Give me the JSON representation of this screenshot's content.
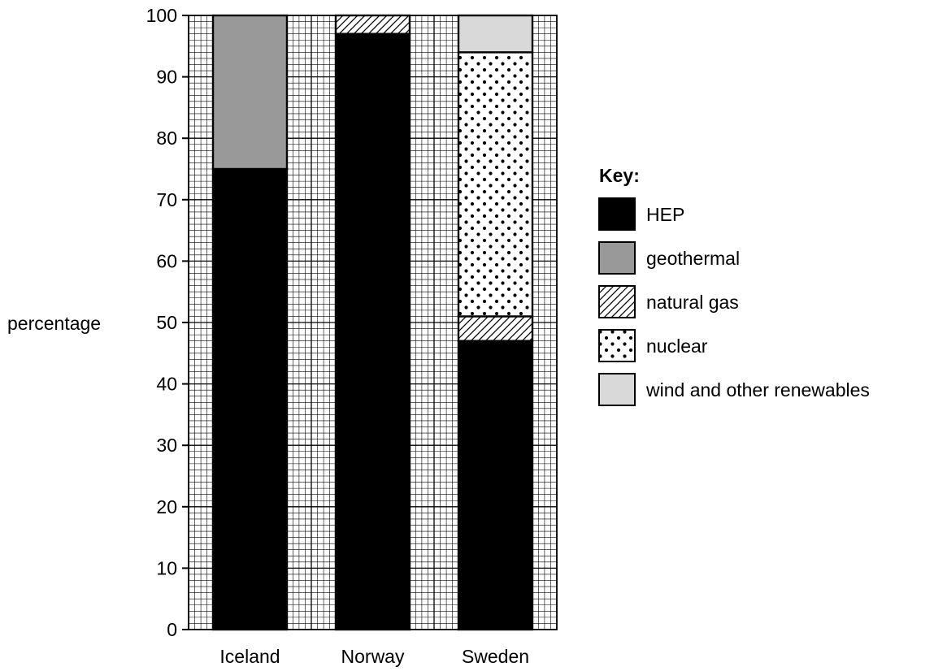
{
  "chart_data": {
    "type": "bar",
    "stacked": true,
    "categories": [
      "Iceland",
      "Norway",
      "Sweden"
    ],
    "ylabel": "percentage",
    "ylim": [
      0,
      100
    ],
    "yticks": [
      0,
      10,
      20,
      30,
      40,
      50,
      60,
      70,
      80,
      90,
      100
    ],
    "grid": true,
    "legend_position": "right",
    "legend_title": "Key:",
    "series": [
      {
        "name": "HEP",
        "values": [
          75,
          97,
          47
        ],
        "pattern": "solid",
        "color": "#000000"
      },
      {
        "name": "geothermal",
        "values": [
          25,
          0,
          0
        ],
        "pattern": "solid",
        "color": "#999999"
      },
      {
        "name": "natural gas",
        "values": [
          0,
          3,
          4
        ],
        "pattern": "hatch",
        "color": "#ffffff"
      },
      {
        "name": "nuclear",
        "values": [
          0,
          0,
          43
        ],
        "pattern": "dots",
        "color": "#ffffff"
      },
      {
        "name": "wind and other renewables",
        "values": [
          0,
          0,
          6
        ],
        "pattern": "solid",
        "color": "#d9d9d9"
      }
    ]
  }
}
